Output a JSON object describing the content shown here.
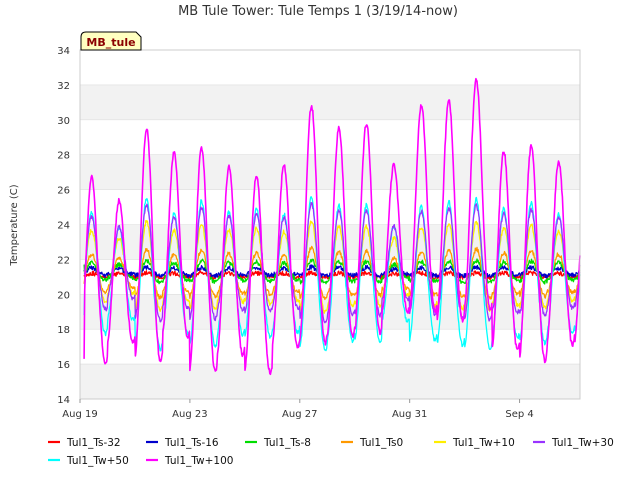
{
  "chart_data": {
    "type": "line",
    "title": "MB Tule Tower: Tule Temps 1 (3/19/14-now)",
    "xlabel": "",
    "ylabel": "Temperature (C)",
    "ylim": [
      14,
      34
    ],
    "yticks": [
      14,
      16,
      18,
      20,
      22,
      24,
      26,
      28,
      30,
      32,
      34
    ],
    "xlim": [
      0,
      18.2
    ],
    "xticks": [
      {
        "label": "Aug 19",
        "day": 0
      },
      {
        "label": "Aug 23",
        "day": 4
      },
      {
        "label": "Aug 27",
        "day": 8
      },
      {
        "label": "Aug 31",
        "day": 12
      },
      {
        "label": "Sep 4",
        "day": 16
      }
    ],
    "x_unit": "days since Aug 19 00:00",
    "site_label": "MB_tule",
    "grid": "horizontal bands",
    "legend_position": "bottom",
    "day_max_tw100": [
      26.7,
      25.4,
      29.5,
      28.1,
      28.4,
      27.3,
      26.8,
      27.4,
      30.8,
      29.5,
      29.8,
      27.4,
      30.8,
      31.1,
      32.3,
      28.2,
      28.5,
      27.6
    ],
    "day_min_tw100": [
      16.0,
      17.2,
      16.2,
      17.5,
      15.6,
      16.5,
      15.5,
      17.0,
      17.2,
      17.6,
      17.8,
      19.0,
      19.0,
      18.5,
      19.1,
      16.8,
      16.2,
      17.1
    ],
    "series": [
      {
        "name": "Tul1_Ts-32",
        "color": "#ff0000",
        "mean": 21.1,
        "amplitude": 0.1,
        "start": 21.1,
        "note": "near-constant, slow decline to ~20.9 mid-record then ~21.2"
      },
      {
        "name": "Tul1_Ts-16",
        "color": "#0000cc",
        "mean": 21.3,
        "amplitude": 0.2,
        "start": 21.4
      },
      {
        "name": "Tul1_Ts-8",
        "color": "#00dd00",
        "mean": 21.3,
        "amplitude": 0.5,
        "start": 21.7
      },
      {
        "name": "Tul1_Ts0",
        "color": "#ff9900",
        "mean": 21.2,
        "amplitude": 1.1,
        "start": 20.6
      },
      {
        "name": "Tul1_Tw+10",
        "color": "#ffee00",
        "mean": 21.6,
        "amplitude": 2.0,
        "start": 21.3
      },
      {
        "name": "Tul1_Tw+30",
        "color": "#9933ff",
        "mean": 21.8,
        "amplitude": 2.6,
        "start": 21.2
      },
      {
        "name": "Tul1_Tw+50",
        "color": "#00ffff",
        "mean": 21.2,
        "amplitude": 3.4,
        "start": 18.8
      },
      {
        "name": "Tul1_Tw+100",
        "color": "#ff00ff",
        "mean": 22.0,
        "amplitude": 5.5,
        "start": 16.3
      }
    ]
  }
}
